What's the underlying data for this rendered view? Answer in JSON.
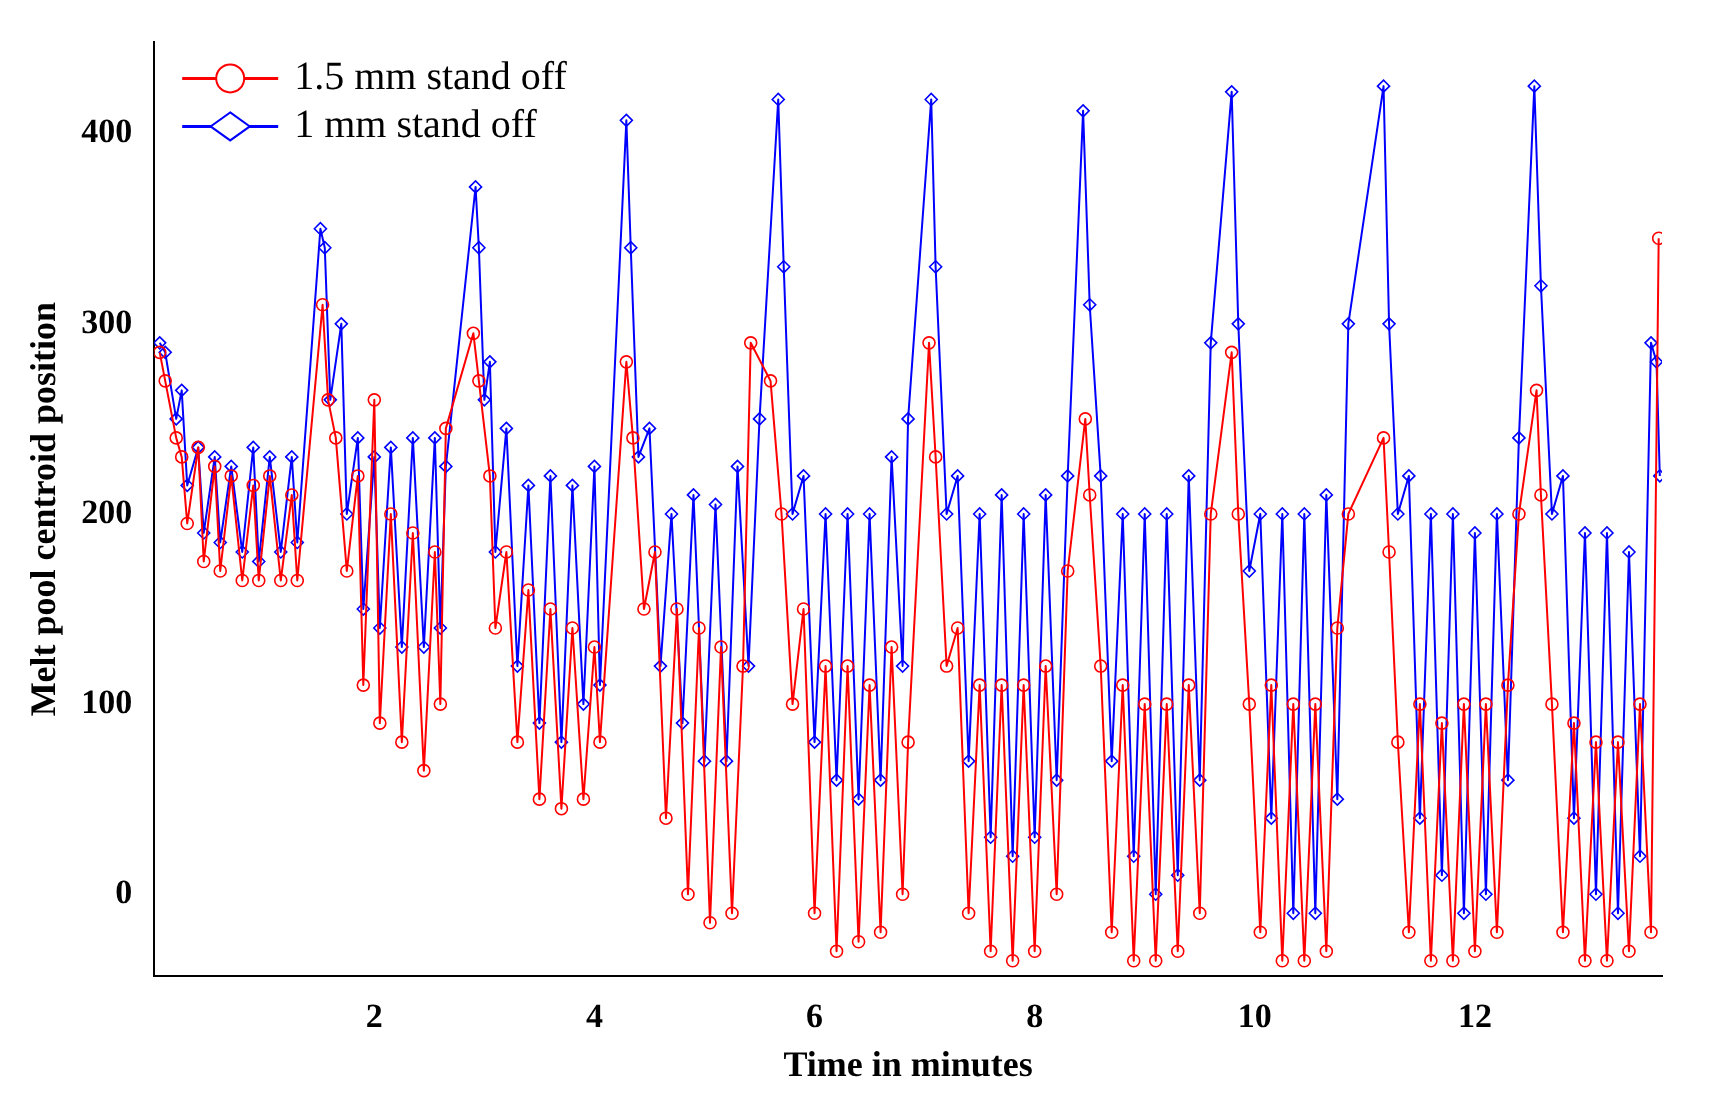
{
  "chart_data": {
    "type": "line",
    "xlabel": "Time in minutes",
    "ylabel": "Melt pool centroid position",
    "xlim": [
      0,
      13.7
    ],
    "xticks": [
      2,
      4,
      6,
      8,
      10,
      12
    ],
    "ylim": [
      -43,
      448
    ],
    "yticks": [
      0,
      100,
      200,
      300,
      400
    ],
    "grid": false,
    "legend": "top left",
    "line_style": "solid",
    "series": [
      {
        "name": "1.5 mm stand off",
        "color": "#ff0000",
        "marker": "circle",
        "x": [
          0.05,
          0.1,
          0.2,
          0.25,
          0.3,
          0.4,
          0.45,
          0.55,
          0.6,
          0.7,
          0.8,
          0.9,
          0.95,
          1.05,
          1.15,
          1.25,
          1.3,
          1.53,
          1.58,
          1.65,
          1.75,
          1.85,
          1.9,
          2.0,
          2.05,
          2.15,
          2.25,
          2.35,
          2.45,
          2.55,
          2.6,
          2.65,
          2.9,
          2.95,
          3.05,
          3.1,
          3.2,
          3.3,
          3.4,
          3.5,
          3.6,
          3.7,
          3.8,
          3.9,
          4.0,
          4.05,
          4.29,
          4.35,
          4.45,
          4.55,
          4.65,
          4.75,
          4.85,
          4.95,
          5.05,
          5.15,
          5.25,
          5.35,
          5.42,
          5.6,
          5.7,
          5.8,
          5.9,
          6.0,
          6.1,
          6.2,
          6.3,
          6.4,
          6.5,
          6.6,
          6.7,
          6.8,
          6.85,
          7.04,
          7.1,
          7.2,
          7.3,
          7.4,
          7.5,
          7.6,
          7.7,
          7.8,
          7.9,
          8.0,
          8.1,
          8.2,
          8.3,
          8.46,
          8.5,
          8.6,
          8.7,
          8.8,
          8.9,
          9.0,
          9.1,
          9.2,
          9.3,
          9.4,
          9.5,
          9.6,
          9.79,
          9.85,
          9.95,
          10.05,
          10.15,
          10.25,
          10.35,
          10.45,
          10.55,
          10.65,
          10.75,
          10.85,
          11.17,
          11.22,
          11.3,
          11.4,
          11.5,
          11.6,
          11.7,
          11.8,
          11.9,
          12.0,
          12.1,
          12.2,
          12.3,
          12.4,
          12.56,
          12.6,
          12.7,
          12.8,
          12.9,
          13.0,
          13.1,
          13.2,
          13.3,
          13.4,
          13.5,
          13.6,
          13.67
        ],
        "values": [
          285,
          270,
          240,
          230,
          195,
          235,
          175,
          225,
          170,
          220,
          165,
          215,
          165,
          220,
          165,
          210,
          165,
          310,
          260,
          240,
          170,
          220,
          110,
          260,
          90,
          200,
          80,
          190,
          65,
          180,
          100,
          245,
          295,
          270,
          220,
          140,
          180,
          80,
          160,
          50,
          150,
          45,
          140,
          50,
          130,
          80,
          280,
          240,
          150,
          180,
          40,
          150,
          0,
          140,
          -15,
          130,
          -10,
          120,
          290,
          270,
          200,
          100,
          150,
          -10,
          120,
          -30,
          120,
          -25,
          110,
          -20,
          130,
          0,
          80,
          290,
          230,
          120,
          140,
          -10,
          110,
          -30,
          110,
          -35,
          110,
          -30,
          120,
          0,
          170,
          250,
          210,
          120,
          -20,
          110,
          -35,
          100,
          -35,
          100,
          -30,
          110,
          -10,
          200,
          285,
          200,
          100,
          -20,
          110,
          -35,
          100,
          -35,
          100,
          -30,
          140,
          200,
          240,
          180,
          80,
          -20,
          100,
          -35,
          90,
          -35,
          100,
          -30,
          100,
          -20,
          110,
          200,
          265,
          210,
          100,
          -20,
          90,
          -35,
          80,
          -35,
          80,
          -30,
          100,
          -20,
          345
        ]
      },
      {
        "name": "1 mm stand off",
        "color": "#0000ff",
        "marker": "diamond",
        "x": [
          0.05,
          0.1,
          0.2,
          0.25,
          0.3,
          0.4,
          0.45,
          0.55,
          0.6,
          0.7,
          0.8,
          0.9,
          0.95,
          1.05,
          1.15,
          1.25,
          1.3,
          1.51,
          1.55,
          1.6,
          1.7,
          1.75,
          1.85,
          1.9,
          2.0,
          2.05,
          2.15,
          2.25,
          2.35,
          2.45,
          2.55,
          2.6,
          2.65,
          2.92,
          2.95,
          3.0,
          3.05,
          3.1,
          3.2,
          3.3,
          3.4,
          3.5,
          3.6,
          3.7,
          3.8,
          3.9,
          4.0,
          4.05,
          4.29,
          4.33,
          4.4,
          4.5,
          4.6,
          4.7,
          4.8,
          4.9,
          5.0,
          5.1,
          5.2,
          5.3,
          5.4,
          5.5,
          5.67,
          5.72,
          5.8,
          5.9,
          6.0,
          6.1,
          6.2,
          6.3,
          6.4,
          6.5,
          6.6,
          6.7,
          6.8,
          6.85,
          7.06,
          7.1,
          7.2,
          7.3,
          7.4,
          7.5,
          7.6,
          7.7,
          7.8,
          7.9,
          8.0,
          8.1,
          8.2,
          8.3,
          8.44,
          8.5,
          8.6,
          8.7,
          8.8,
          8.9,
          9.0,
          9.1,
          9.2,
          9.3,
          9.4,
          9.5,
          9.6,
          9.79,
          9.85,
          9.95,
          10.05,
          10.15,
          10.25,
          10.35,
          10.45,
          10.55,
          10.65,
          10.75,
          10.85,
          11.17,
          11.22,
          11.3,
          11.4,
          11.5,
          11.6,
          11.7,
          11.8,
          11.9,
          12.0,
          12.1,
          12.2,
          12.3,
          12.4,
          12.54,
          12.6,
          12.7,
          12.8,
          12.9,
          13.0,
          13.1,
          13.2,
          13.3,
          13.4,
          13.5,
          13.6,
          13.65,
          13.68
        ],
        "values": [
          290,
          285,
          250,
          265,
          215,
          235,
          190,
          230,
          185,
          225,
          180,
          235,
          175,
          230,
          180,
          230,
          185,
          350,
          340,
          260,
          300,
          200,
          240,
          150,
          230,
          140,
          235,
          130,
          240,
          130,
          240,
          140,
          225,
          372,
          340,
          260,
          280,
          180,
          245,
          120,
          215,
          90,
          220,
          80,
          215,
          100,
          225,
          110,
          407,
          340,
          230,
          245,
          120,
          200,
          90,
          210,
          70,
          205,
          70,
          225,
          120,
          250,
          418,
          330,
          200,
          220,
          80,
          200,
          60,
          200,
          50,
          200,
          60,
          230,
          120,
          250,
          418,
          330,
          200,
          220,
          70,
          200,
          30,
          210,
          20,
          200,
          30,
          210,
          60,
          220,
          412,
          310,
          220,
          70,
          200,
          20,
          200,
          0,
          200,
          10,
          220,
          60,
          290,
          422,
          300,
          170,
          200,
          40,
          200,
          -10,
          200,
          -10,
          210,
          50,
          300,
          425,
          300,
          200,
          220,
          40,
          200,
          10,
          200,
          -10,
          190,
          0,
          200,
          60,
          240,
          425,
          320,
          200,
          220,
          40,
          190,
          0,
          190,
          -10,
          180,
          20,
          290,
          280,
          220
        ]
      }
    ]
  }
}
